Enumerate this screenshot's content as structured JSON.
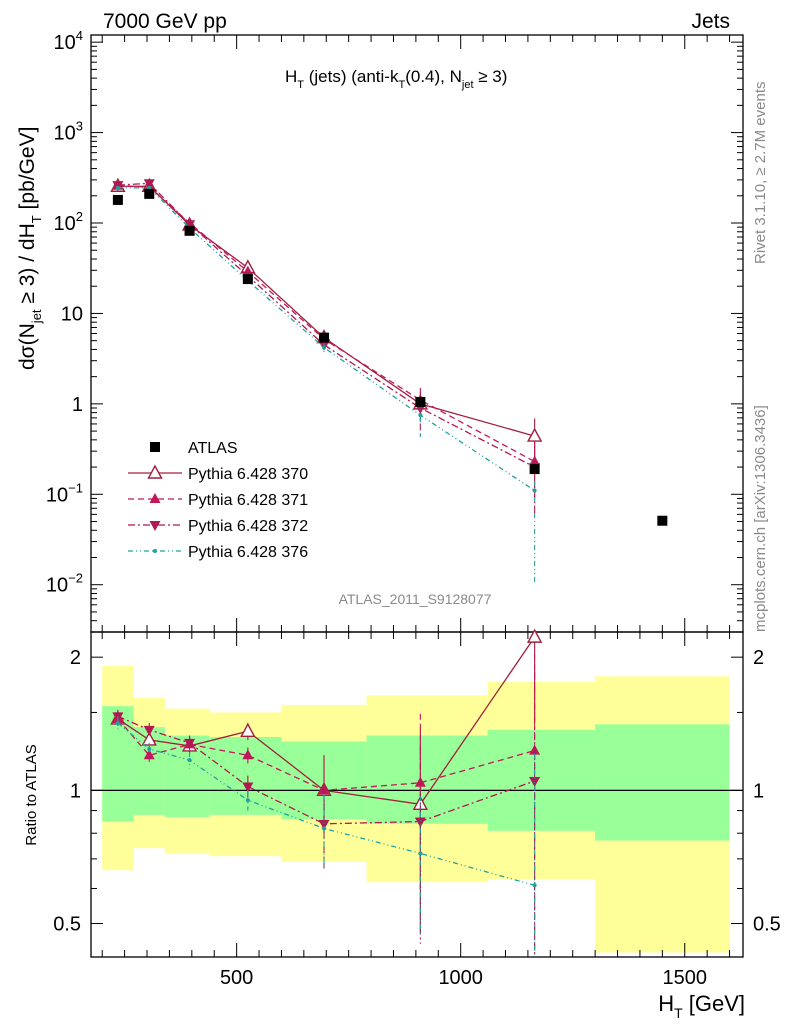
{
  "header": {
    "left": "7000 GeV pp",
    "right": "Jets"
  },
  "side_labels": {
    "rivet": "Rivet 3.1.10, ≥ 2.7M events",
    "mcplots": "mcplots.cern.ch [arXiv:1306.3436]"
  },
  "watermark": "ATLAS_2011_S9128077",
  "chart_data": [
    {
      "type": "scatter",
      "panel": "main",
      "title": "H_T (jets) (anti-k_T(0.4), N_jet ≥ 3)",
      "title_parts": {
        "a": "H",
        "a_sub": "T",
        "b": " (jets) (anti-k",
        "b_sub": "T",
        "c": "(0.4), N",
        "c_sub": "jet",
        "d": " ≥ 3)"
      },
      "ylabel": "dσ(N_jet ≥ 3) / dH_T [pb/GeV]",
      "ylabel_parts": {
        "a": "dσ(N",
        "a_sub": "jet",
        "b": " ≥ 3) / dH",
        "b_sub": "T",
        "c": " [pb/GeV]"
      },
      "yscale": "log",
      "xlim": [
        175,
        1630
      ],
      "ylim": [
        0.003,
        12000
      ],
      "yticks": [
        {
          "v": 10000,
          "base": "10",
          "exp": "4"
        },
        {
          "v": 1000,
          "base": "10",
          "exp": "3"
        },
        {
          "v": 100,
          "base": "10",
          "exp": "2"
        },
        {
          "v": 10,
          "base": "10",
          "exp": ""
        },
        {
          "v": 1,
          "base": "1",
          "exp": ""
        },
        {
          "v": 0.1,
          "base": "10",
          "exp": "−1"
        },
        {
          "v": 0.01,
          "base": "10",
          "exp": "−2"
        }
      ],
      "legend_position": "left",
      "series": [
        {
          "name": "ATLAS",
          "color": "#000000",
          "marker": "square",
          "style": "none",
          "x": [
            235,
            305,
            395,
            525,
            695,
            910,
            1165,
            1450
          ],
          "y": [
            180,
            210,
            82,
            24,
            5.4,
            1.05,
            0.19,
            0.051
          ]
        },
        {
          "name": "Pythia 6.428 370",
          "color": "#a0203c",
          "marker": "triangle-open",
          "style": "solid",
          "x": [
            235,
            305,
            395,
            525,
            695,
            910,
            1165
          ],
          "y": [
            255,
            255,
            95,
            32,
            5.4,
            1.0,
            0.44
          ],
          "err": [
            0,
            0,
            0,
            0,
            0.6,
            0.35,
            0.25
          ]
        },
        {
          "name": "Pythia 6.428 371",
          "color": "#c0185a",
          "marker": "triangle-up",
          "style": "dashed",
          "x": [
            235,
            305,
            395,
            525,
            695,
            910,
            1165
          ],
          "y": [
            258,
            250,
            100,
            29,
            5.2,
            1.1,
            0.23
          ],
          "err": [
            0,
            0,
            0,
            0,
            0.6,
            0.4,
            0.15
          ]
        },
        {
          "name": "Pythia 6.428 372",
          "color": "#b01850",
          "marker": "triangle-down",
          "style": "dashdot",
          "x": [
            235,
            305,
            395,
            525,
            695,
            910,
            1165
          ],
          "y": [
            262,
            275,
            97,
            26,
            4.5,
            0.9,
            0.2
          ],
          "err": [
            0,
            0,
            0,
            0,
            0.55,
            0.4,
            0.14
          ]
        },
        {
          "name": "Pythia 6.428 376",
          "color": "#20a0a0",
          "marker": "dot",
          "style": "dashdotdot",
          "x": [
            235,
            305,
            395,
            525,
            695,
            910,
            1165
          ],
          "y": [
            245,
            245,
            88,
            23,
            4.2,
            0.75,
            0.11
          ],
          "err": [
            0,
            0,
            0,
            0,
            0.5,
            0.32,
            0.1
          ]
        }
      ]
    },
    {
      "type": "scatter",
      "panel": "ratio",
      "xlabel": "H_T [GeV]",
      "xlabel_parts": {
        "a": "H",
        "a_sub": "T",
        "b": " [GeV]"
      },
      "ylabel": "Ratio to ATLAS",
      "xlim": [
        175,
        1630
      ],
      "ylim": [
        0.42,
        2.28
      ],
      "yticks": [
        {
          "v": 0.5,
          "label": "0.5"
        },
        {
          "v": 1,
          "label": "1"
        },
        {
          "v": 2,
          "label": "2"
        }
      ],
      "xticks": [
        {
          "v": 500,
          "label": "500"
        },
        {
          "v": 1000,
          "label": "1000"
        },
        {
          "v": 1500,
          "label": "1500"
        }
      ],
      "bands": [
        {
          "x0": 200,
          "x1": 270,
          "y0": 0.66,
          "y1": 1.91,
          "g0": 0.85,
          "g1": 1.55
        },
        {
          "x0": 270,
          "x1": 340,
          "y0": 0.74,
          "y1": 1.62,
          "g0": 0.88,
          "g1": 1.39
        },
        {
          "x0": 340,
          "x1": 440,
          "y0": 0.72,
          "y1": 1.53,
          "g0": 0.87,
          "g1": 1.33
        },
        {
          "x0": 440,
          "x1": 600,
          "y0": 0.71,
          "y1": 1.5,
          "g0": 0.88,
          "g1": 1.32
        },
        {
          "x0": 600,
          "x1": 790,
          "y0": 0.69,
          "y1": 1.56,
          "g0": 0.86,
          "g1": 1.29
        },
        {
          "x0": 790,
          "x1": 1060,
          "y0": 0.62,
          "y1": 1.64,
          "g0": 0.84,
          "g1": 1.33
        },
        {
          "x0": 1060,
          "x1": 1300,
          "y0": 0.63,
          "y1": 1.76,
          "g0": 0.81,
          "g1": 1.37
        },
        {
          "x0": 1300,
          "x1": 1600,
          "y0": 0.43,
          "y1": 1.81,
          "g0": 0.77,
          "g1": 1.41
        }
      ],
      "series": [
        {
          "name": "Pythia 6.428 370",
          "color": "#a0203c",
          "marker": "triangle-open",
          "style": "solid",
          "x": [
            235,
            305,
            395,
            525,
            695,
            910,
            1165
          ],
          "y": [
            1.45,
            1.3,
            1.26,
            1.36,
            1.0,
            0.93,
            2.22
          ],
          "err": [
            0.05,
            0.05,
            0.05,
            0.06,
            0.2,
            0.45,
            0.8
          ]
        },
        {
          "name": "Pythia 6.428 371",
          "color": "#c0185a",
          "marker": "triangle-up",
          "style": "dashed",
          "x": [
            235,
            305,
            395,
            525,
            695,
            910,
            1165
          ],
          "y": [
            1.45,
            1.2,
            1.27,
            1.2,
            1.0,
            1.04,
            1.23
          ],
          "err": [
            0.05,
            0.04,
            0.05,
            0.05,
            0.2,
            0.45,
            0.8
          ]
        },
        {
          "name": "Pythia 6.428 372",
          "color": "#b01850",
          "marker": "triangle-down",
          "style": "dashdot",
          "x": [
            235,
            305,
            395,
            525,
            695,
            910,
            1165
          ],
          "y": [
            1.47,
            1.37,
            1.28,
            1.02,
            0.84,
            0.85,
            1.05
          ],
          "err": [
            0.05,
            0.05,
            0.05,
            0.06,
            0.18,
            0.4,
            0.8
          ]
        },
        {
          "name": "Pythia 6.428 376",
          "color": "#20a0a0",
          "marker": "dot",
          "style": "dashdotdot",
          "x": [
            235,
            305,
            395,
            525,
            695,
            910,
            1165
          ],
          "y": [
            1.42,
            1.24,
            1.17,
            0.95,
            0.82,
            0.72,
            0.61
          ],
          "err": [
            0.05,
            0.04,
            0.05,
            0.05,
            0.16,
            0.25,
            0.6
          ]
        }
      ]
    }
  ]
}
